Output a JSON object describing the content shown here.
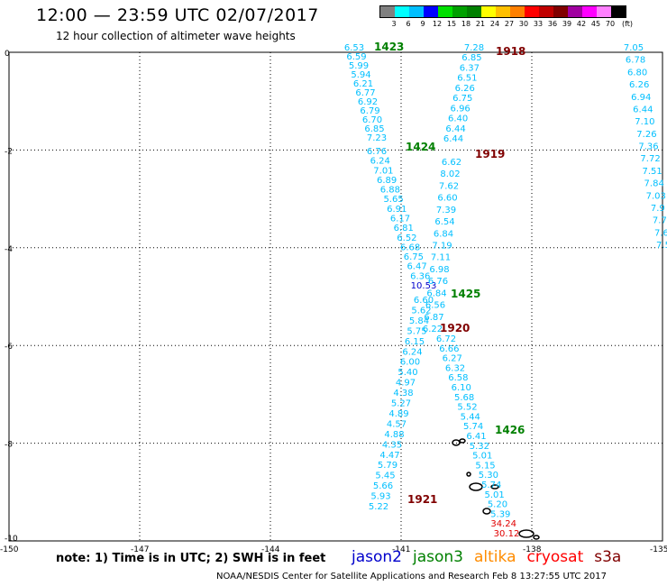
{
  "header": {
    "title": "12:00 — 23:59 UTC 02/07/2017",
    "subtitle": "12 hour collection of altimeter wave heights"
  },
  "legend": {
    "unit": "(ft)",
    "bins": [
      {
        "label": "3",
        "color": "#808080"
      },
      {
        "label": "6",
        "color": "#00ffff"
      },
      {
        "label": "9",
        "color": "#00bfff"
      },
      {
        "label": "12",
        "color": "#0000ff"
      },
      {
        "label": "15",
        "color": "#00e000"
      },
      {
        "label": "18",
        "color": "#00a000"
      },
      {
        "label": "21",
        "color": "#008000"
      },
      {
        "label": "24",
        "color": "#ffff00"
      },
      {
        "label": "27",
        "color": "#ffc000"
      },
      {
        "label": "30",
        "color": "#ff8000"
      },
      {
        "label": "33",
        "color": "#ff0000"
      },
      {
        "label": "36",
        "color": "#c00000"
      },
      {
        "label": "39",
        "color": "#800000"
      },
      {
        "label": "42",
        "color": "#a000a0"
      },
      {
        "label": "45",
        "color": "#ff00ff"
      },
      {
        "label": "70",
        "color": "#ff80ff"
      },
      {
        "label": "",
        "color": "#000000"
      }
    ]
  },
  "axes": {
    "lat_labels": [
      "0",
      "-2",
      "-4",
      "-6",
      "-8",
      "-10"
    ],
    "lon_labels": [
      "-150",
      "-147",
      "-144",
      "-141",
      "-138",
      "-135"
    ]
  },
  "tracks": [
    {
      "time": "1423",
      "color": "#008000",
      "values": [
        "6.53",
        "6.59",
        "5.99",
        "5.94",
        "6.21",
        "6.77",
        "6.92",
        "6.79",
        "6.70",
        "6.85",
        "7.23"
      ]
    },
    {
      "time": "1424",
      "color": "#008000",
      "values": [
        "6.76",
        "6.24",
        "7.01",
        "6.89",
        "6.88",
        "5.65",
        "6.91",
        "6.17",
        "6.81",
        "6.52",
        "6.68",
        "6.75",
        "6.47",
        "6.36",
        "10.53"
      ]
    },
    {
      "time": "1425",
      "color": "#008000",
      "values": [
        "6.60",
        "5.62",
        "5.84",
        "5.75",
        "6.15",
        "6.24",
        "6.00",
        "5.40",
        "4.97",
        "4.38",
        "5.27",
        "4.89",
        "4.57",
        "4.88",
        "4.35",
        "4.47",
        "5.79",
        "5.45",
        "5.66",
        "5.93",
        "5.22"
      ]
    },
    {
      "time": "1921",
      "color": "#800000",
      "values": []
    },
    {
      "time": "1918",
      "color": "#800000",
      "values": [
        "7.28",
        "6.85",
        "6.37",
        "6.51",
        "6.26",
        "6.75",
        "6.96",
        "6.40",
        "6.44",
        "6.44"
      ]
    },
    {
      "time": "1919",
      "color": "#800000",
      "values": [
        "6.62",
        "8.02",
        "7.62",
        "6.60",
        "7.39",
        "6.54",
        "6.84",
        "7.19",
        "7.11",
        "6.98",
        "6.76",
        "6.84",
        "6.56",
        "6.87",
        "6.22"
      ]
    },
    {
      "time": "1920",
      "color": "#800000",
      "values": [
        "6.72",
        "6.66",
        "6.27",
        "6.32",
        "6.58",
        "6.10",
        "5.68",
        "5.52",
        "5.44",
        "5.74",
        "6.41",
        "5.32",
        "5.01",
        "5.15",
        "5.30",
        "5.74",
        "5.01",
        "5.20",
        "5.39",
        "34.24",
        "30.12"
      ]
    },
    {
      "time": "1426",
      "color": "#008000",
      "values": []
    },
    {
      "time": "",
      "color": "#00bfff",
      "values": [
        "7.05",
        "6.78",
        "6.80",
        "6.26",
        "6.94",
        "6.44",
        "7.10",
        "7.26",
        "7.36",
        "7.72",
        "7.51",
        "7.84",
        "7.03",
        "7.9",
        "7.7",
        "7.6",
        "7.5"
      ]
    }
  ],
  "note": "note:  1) Time is in UTC;  2) SWH is in feet",
  "satellites": [
    {
      "name": "jason2",
      "color": "#0000cc"
    },
    {
      "name": "jason3",
      "color": "#008000"
    },
    {
      "name": "altika",
      "color": "#ff8c00"
    },
    {
      "name": "cryosat",
      "color": "#ff0000"
    },
    {
      "name": "s3a",
      "color": "#800000"
    }
  ],
  "credit": "NOAA/NESDIS Center for Satellite Applications and Research    Feb  8 13:27:55 UTC 2017"
}
